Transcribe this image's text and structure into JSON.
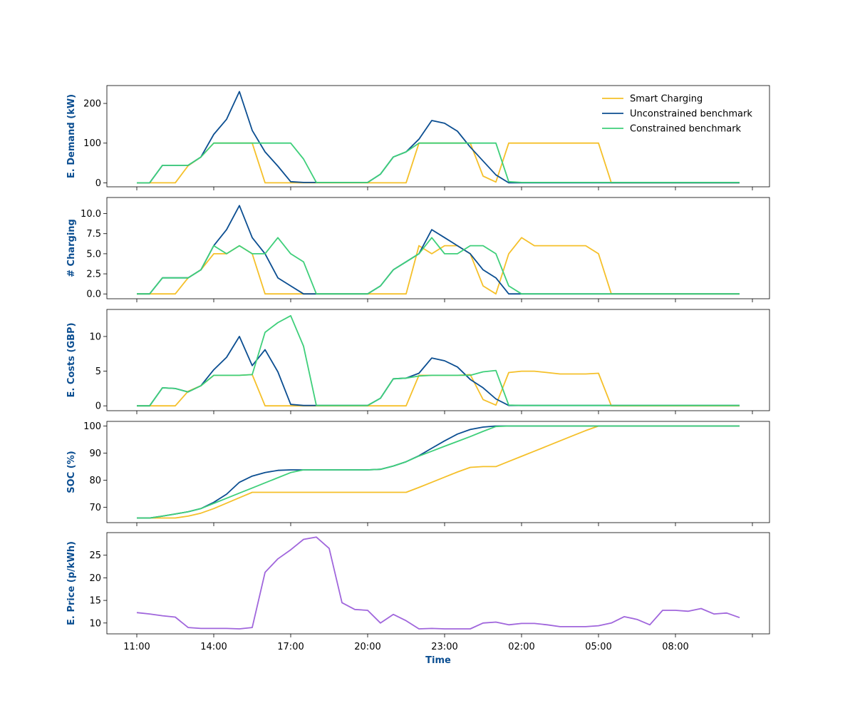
{
  "chart_data": {
    "type": "line",
    "xlabel": "Time",
    "x_ticks": [
      "11:00",
      "14:00",
      "17:00",
      "20:00",
      "23:00",
      "02:00",
      "05:00",
      "08:00",
      ""
    ],
    "legend_position": "upper right of top panel",
    "colors": {
      "smart": "#f5c02a",
      "unconstrained": "#0b4e91",
      "constrained": "#3ecf7a",
      "price": "#a066dc",
      "label": "#0b4e91"
    },
    "x": [
      "11:00",
      "11:30",
      "12:00",
      "12:30",
      "13:00",
      "13:30",
      "14:00",
      "14:30",
      "15:00",
      "15:30",
      "16:00",
      "16:30",
      "17:00",
      "17:30",
      "18:00",
      "18:30",
      "19:00",
      "19:30",
      "20:00",
      "20:30",
      "21:00",
      "21:30",
      "22:00",
      "22:30",
      "23:00",
      "23:30",
      "00:00",
      "00:30",
      "01:00",
      "01:30",
      "02:00",
      "02:30",
      "03:00",
      "03:30",
      "04:00",
      "04:30",
      "05:00",
      "05:30",
      "06:00",
      "06:30",
      "07:00",
      "07:30",
      "08:00",
      "08:30",
      "09:00",
      "09:30",
      "10:00",
      "10:30"
    ],
    "panels": [
      {
        "ylabel": "E. Demand (kW)",
        "ylim": [
          -10,
          245
        ],
        "yticks": [
          0,
          100,
          200
        ],
        "tick_labels": [
          "0",
          "100",
          "200"
        ],
        "legend": true,
        "series": [
          {
            "name": "Smart Charging",
            "color_key": "smart",
            "values": [
              0,
              0,
              0,
              0,
              43,
              65,
              100,
              100,
              100,
              100,
              0,
              0,
              0,
              0,
              0,
              0,
              0,
              0,
              0,
              0,
              0,
              0,
              100,
              100,
              100,
              100,
              100,
              17,
              2,
              100,
              100,
              100,
              100,
              100,
              100,
              100,
              100,
              0,
              0,
              0,
              0,
              0,
              0,
              0,
              0,
              0,
              0,
              0
            ]
          },
          {
            "name": "Unconstrained benchmark",
            "color_key": "unconstrained",
            "values": [
              0,
              0,
              44,
              44,
              44,
              65,
              122,
              160,
              230,
              132,
              78,
              42,
              3,
              1,
              1,
              1,
              1,
              1,
              1,
              22,
              65,
              78,
              110,
              157,
              150,
              130,
              90,
              55,
              20,
              0,
              0,
              0,
              0,
              0,
              0,
              0,
              0,
              0,
              0,
              0,
              0,
              0,
              0,
              0,
              0,
              0,
              0,
              0
            ]
          },
          {
            "name": "Constrained benchmark",
            "color_key": "constrained",
            "values": [
              0,
              0,
              44,
              44,
              44,
              65,
              100,
              100,
              100,
              100,
              100,
              100,
              100,
              60,
              1,
              1,
              1,
              1,
              1,
              22,
              65,
              78,
              100,
              100,
              100,
              100,
              100,
              100,
              100,
              3,
              1,
              1,
              1,
              1,
              1,
              1,
              1,
              1,
              1,
              1,
              1,
              1,
              1,
              1,
              1,
              1,
              1,
              1
            ]
          }
        ]
      },
      {
        "ylabel": "# Charging",
        "ylim": [
          -0.6,
          12.0
        ],
        "yticks": [
          0.0,
          2.5,
          5.0,
          7.5,
          10.0
        ],
        "tick_labels": [
          "0.0",
          "2.5",
          "5.0",
          "7.5",
          "10.0"
        ],
        "legend": false,
        "series": [
          {
            "name": "Smart Charging",
            "color_key": "smart",
            "values": [
              0,
              0,
              0,
              0,
              2,
              3,
              5,
              5,
              6,
              5,
              0,
              0,
              0,
              0,
              0,
              0,
              0,
              0,
              0,
              0,
              0,
              0,
              6,
              5,
              6,
              6,
              5,
              1,
              0,
              5,
              7,
              6,
              6,
              6,
              6,
              6,
              5,
              0,
              0,
              0,
              0,
              0,
              0,
              0,
              0,
              0,
              0,
              0
            ]
          },
          {
            "name": "Unconstrained benchmark",
            "color_key": "unconstrained",
            "values": [
              0,
              0,
              2,
              2,
              2,
              3,
              6,
              8,
              11,
              7,
              5,
              2,
              1,
              0,
              0,
              0,
              0,
              0,
              0,
              1,
              3,
              4,
              5,
              8,
              7,
              6,
              5,
              3,
              2,
              0,
              0,
              0,
              0,
              0,
              0,
              0,
              0,
              0,
              0,
              0,
              0,
              0,
              0,
              0,
              0,
              0,
              0,
              0
            ]
          },
          {
            "name": "Constrained benchmark",
            "color_key": "constrained",
            "values": [
              0,
              0,
              2,
              2,
              2,
              3,
              6,
              5,
              6,
              5,
              5,
              7,
              5,
              4,
              0,
              0,
              0,
              0,
              0,
              1,
              3,
              4,
              5,
              7,
              5,
              5,
              6,
              6,
              5,
              1,
              0,
              0,
              0,
              0,
              0,
              0,
              0,
              0,
              0,
              0,
              0,
              0,
              0,
              0,
              0,
              0,
              0,
              0
            ]
          }
        ]
      },
      {
        "ylabel": "E. Costs (GBP)",
        "ylim": [
          -0.7,
          13.9
        ],
        "yticks": [
          0,
          5,
          10
        ],
        "tick_labels": [
          "0",
          "5",
          "10"
        ],
        "legend": false,
        "series": [
          {
            "name": "Smart Charging",
            "color_key": "smart",
            "values": [
              0,
              0,
              0,
              0,
              2.1,
              2.9,
              4.4,
              4.4,
              4.4,
              4.5,
              0,
              0,
              0,
              0,
              0,
              0,
              0,
              0,
              0,
              0,
              0,
              0,
              4.4,
              4.4,
              4.4,
              4.4,
              4.5,
              0.9,
              0.1,
              4.8,
              5.0,
              5.0,
              4.8,
              4.6,
              4.6,
              4.6,
              4.7,
              0,
              0,
              0,
              0,
              0,
              0,
              0,
              0,
              0,
              0,
              0
            ]
          },
          {
            "name": "Unconstrained benchmark",
            "color_key": "unconstrained",
            "values": [
              0,
              0,
              2.6,
              2.5,
              2.0,
              2.9,
              5.2,
              7.0,
              10.0,
              5.8,
              8.1,
              4.9,
              0.2,
              0.05,
              0.05,
              0.05,
              0.05,
              0.05,
              0.05,
              1.1,
              3.9,
              4.0,
              4.7,
              6.9,
              6.5,
              5.6,
              3.8,
              2.6,
              1.0,
              0.05,
              0.05,
              0.05,
              0.05,
              0.05,
              0.05,
              0.05,
              0.05,
              0.05,
              0.05,
              0.05,
              0.05,
              0.05,
              0.05,
              0.05,
              0.05,
              0.05,
              0.05,
              0.05
            ]
          },
          {
            "name": "Constrained benchmark",
            "color_key": "constrained",
            "values": [
              0,
              0,
              2.6,
              2.5,
              2.0,
              2.9,
              4.4,
              4.4,
              4.4,
              4.5,
              10.6,
              12.0,
              13.0,
              8.6,
              0.05,
              0.05,
              0.05,
              0.05,
              0.05,
              1.1,
              3.9,
              4.0,
              4.3,
              4.4,
              4.4,
              4.4,
              4.4,
              4.9,
              5.1,
              0.1,
              0.05,
              0.05,
              0.05,
              0.05,
              0.05,
              0.05,
              0.05,
              0.05,
              0.05,
              0.05,
              0.05,
              0.05,
              0.05,
              0.05,
              0.05,
              0.05,
              0.05,
              0.05
            ]
          }
        ]
      },
      {
        "ylabel": "SOC (%)",
        "ylim": [
          64.3,
          101.7
        ],
        "yticks": [
          70,
          80,
          90,
          100
        ],
        "tick_labels": [
          "70",
          "80",
          "90",
          "100"
        ],
        "legend": false,
        "series": [
          {
            "name": "Smart Charging",
            "color_key": "smart",
            "values": [
              66,
              66,
              66,
              66,
              66.7,
              67.8,
              69.5,
              71.5,
              73.5,
              75.5,
              75.5,
              75.5,
              75.5,
              75.5,
              75.5,
              75.5,
              75.5,
              75.5,
              75.5,
              75.5,
              75.5,
              75.5,
              77.3,
              79.2,
              81.1,
              83,
              84.7,
              85,
              85,
              86.9,
              88.8,
              90.7,
              92.6,
              94.5,
              96.4,
              98.3,
              100,
              100,
              100,
              100,
              100,
              100,
              100,
              100,
              100,
              100,
              100,
              100
            ]
          },
          {
            "name": "Unconstrained benchmark",
            "color_key": "unconstrained",
            "values": [
              66,
              66,
              66.7,
              67.5,
              68.3,
              69.5,
              71.8,
              74.8,
              79.2,
              81.5,
              82.8,
              83.6,
              83.8,
              83.8,
              83.8,
              83.8,
              83.8,
              83.8,
              83.8,
              84,
              85.2,
              86.8,
              89,
              91.8,
              94.5,
              97,
              98.7,
              99.6,
              100,
              100,
              100,
              100,
              100,
              100,
              100,
              100,
              100,
              100,
              100,
              100,
              100,
              100,
              100,
              100,
              100,
              100,
              100,
              100
            ]
          },
          {
            "name": "Constrained benchmark",
            "color_key": "constrained",
            "values": [
              66,
              66,
              66.7,
              67.5,
              68.3,
              69.5,
              71.4,
              73.3,
              75.2,
              77.1,
              79,
              80.9,
              82.8,
              83.8,
              83.8,
              83.8,
              83.8,
              83.8,
              83.8,
              84,
              85.2,
              86.8,
              88.9,
              90.7,
              92.5,
              94.3,
              96.1,
              98,
              99.8,
              100,
              100,
              100,
              100,
              100,
              100,
              100,
              100,
              100,
              100,
              100,
              100,
              100,
              100,
              100,
              100,
              100,
              100,
              100
            ]
          }
        ]
      },
      {
        "ylabel": "E. Price (p/kWh)",
        "ylim": [
          7.6,
          30.0
        ],
        "yticks": [
          10,
          15,
          20,
          25
        ],
        "tick_labels": [
          "10",
          "15",
          "20",
          "25"
        ],
        "legend": false,
        "series": [
          {
            "name": "",
            "color_key": "price",
            "values": [
              12.3,
              12.0,
              11.6,
              11.3,
              9.0,
              8.8,
              8.8,
              8.8,
              8.7,
              9.0,
              21.2,
              24.2,
              26.2,
              28.5,
              29.0,
              26.5,
              14.5,
              13.0,
              12.8,
              10.0,
              11.9,
              10.5,
              8.7,
              8.8,
              8.7,
              8.7,
              8.7,
              10.0,
              10.2,
              9.6,
              9.9,
              9.9,
              9.6,
              9.2,
              9.2,
              9.2,
              9.4,
              10.0,
              11.4,
              10.8,
              9.6,
              12.8,
              12.8,
              12.6,
              13.2,
              12.0,
              12.2,
              11.2
            ]
          }
        ]
      }
    ]
  }
}
